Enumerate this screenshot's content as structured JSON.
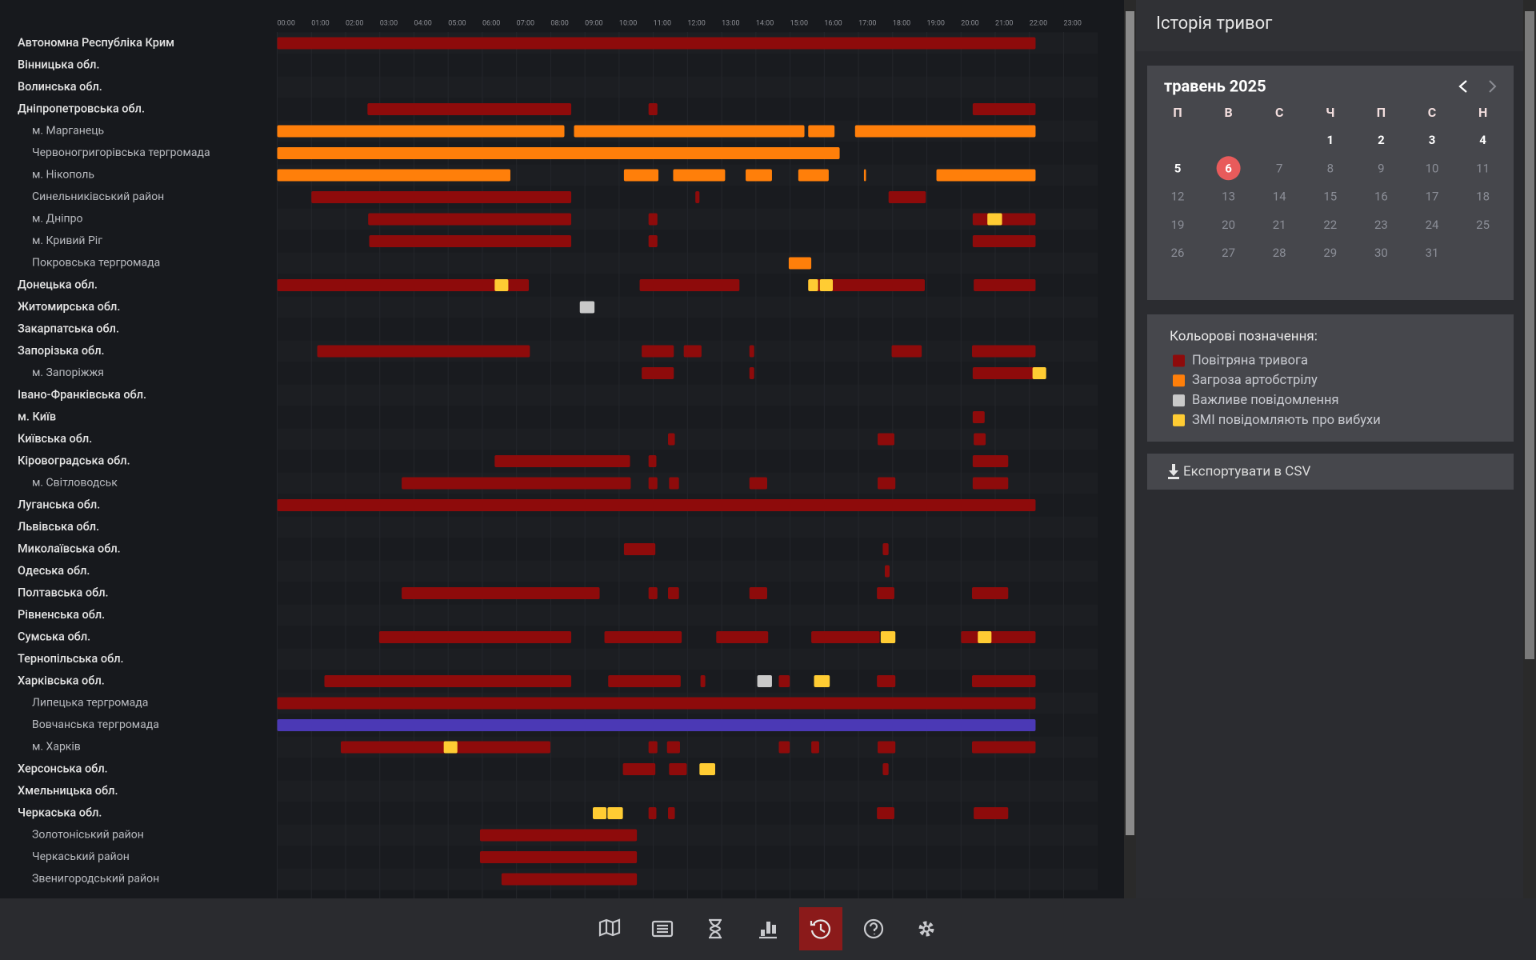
{
  "timeline": {
    "xlim": [
      0,
      24
    ],
    "hours": [
      "00:00",
      "01:00",
      "02:00",
      "03:00",
      "04:00",
      "05:00",
      "06:00",
      "07:00",
      "08:00",
      "09:00",
      "10:00",
      "11:00",
      "12:00",
      "13:00",
      "14:00",
      "15:00",
      "16:00",
      "17:00",
      "18:00",
      "19:00",
      "20:00",
      "21:00",
      "22:00",
      "23:00"
    ],
    "palette": [
      "#8e0b0b",
      "#ff7f0a",
      "#c9c9c9",
      "#ffcc33",
      "#4b39b5"
    ],
    "rows": [
      {
        "name": "Автономна Республіка Крим",
        "level": 0,
        "events": [
          [
            0,
            22.18,
            0
          ]
        ]
      },
      {
        "name": "Вінницька обл.",
        "level": 0,
        "events": []
      },
      {
        "name": "Волинська обл.",
        "level": 0,
        "events": []
      },
      {
        "name": "Дніпропетровська обл.",
        "level": 0,
        "events": [
          [
            2.64,
            8.6,
            0
          ],
          [
            10.86,
            11.12,
            0
          ],
          [
            20.34,
            22.18,
            0
          ]
        ]
      },
      {
        "name": "м. Марганець",
        "level": 1,
        "events": [
          [
            0,
            8.4,
            1
          ],
          [
            8.68,
            15.42,
            1
          ],
          [
            15.53,
            16.3,
            1
          ],
          [
            16.9,
            22.18,
            1
          ]
        ]
      },
      {
        "name": "Червоногригорівська тергромада",
        "level": 1,
        "events": [
          [
            0,
            16.45,
            1
          ]
        ]
      },
      {
        "name": "м. Нікополь",
        "level": 1,
        "events": [
          [
            0,
            6.82,
            1
          ],
          [
            10.14,
            11.15,
            1
          ],
          [
            11.58,
            13.1,
            1
          ],
          [
            13.7,
            14.47,
            1
          ],
          [
            15.24,
            16.13,
            1
          ],
          [
            17.16,
            17.22,
            1
          ],
          [
            19.28,
            22.18,
            1
          ]
        ]
      },
      {
        "name": "Синельниківський район",
        "level": 1,
        "events": [
          [
            1.0,
            8.6,
            0
          ],
          [
            12.23,
            12.35,
            0
          ],
          [
            17.88,
            18.97,
            0
          ]
        ]
      },
      {
        "name": "м. Дніпро",
        "level": 1,
        "events": [
          [
            2.66,
            8.6,
            0
          ],
          [
            10.86,
            11.12,
            0
          ],
          [
            20.34,
            22.18,
            0
          ],
          [
            20.77,
            21.2,
            3
          ]
        ]
      },
      {
        "name": "м. Кривий Ріг",
        "level": 1,
        "events": [
          [
            2.69,
            8.6,
            0
          ],
          [
            10.86,
            11.12,
            0
          ],
          [
            20.34,
            22.18,
            0
          ]
        ]
      },
      {
        "name": "Покровська тергромада",
        "level": 1,
        "events": [
          [
            14.96,
            15.62,
            1
          ]
        ]
      },
      {
        "name": "Донецька обл.",
        "level": 0,
        "events": [
          [
            0,
            7.36,
            0
          ],
          [
            6.36,
            6.76,
            3
          ],
          [
            10.6,
            13.52,
            0
          ],
          [
            15.53,
            18.94,
            0
          ],
          [
            15.53,
            15.82,
            3
          ],
          [
            15.87,
            16.25,
            3
          ],
          [
            20.37,
            22.18,
            0
          ]
        ]
      },
      {
        "name": "Житомирська обл.",
        "level": 0,
        "events": [
          [
            8.85,
            9.28,
            2
          ]
        ]
      },
      {
        "name": "Закарпатська обл.",
        "level": 0,
        "events": []
      },
      {
        "name": "Запорізька обл.",
        "level": 0,
        "events": [
          [
            1.17,
            7.39,
            0
          ],
          [
            10.66,
            11.6,
            0
          ],
          [
            11.89,
            12.41,
            0
          ],
          [
            13.81,
            13.95,
            0
          ],
          [
            17.97,
            18.85,
            0
          ],
          [
            20.32,
            22.18,
            0
          ]
        ]
      },
      {
        "name": "м. Запоріжжя",
        "level": 1,
        "events": [
          [
            10.66,
            11.6,
            0
          ],
          [
            13.81,
            13.95,
            0
          ],
          [
            20.34,
            22.18,
            0
          ],
          [
            22.09,
            22.49,
            3
          ]
        ]
      },
      {
        "name": "Івано-Франківська обл.",
        "level": 0,
        "events": []
      },
      {
        "name": "м. Київ",
        "level": 0,
        "events": [
          [
            20.34,
            20.69,
            0
          ]
        ]
      },
      {
        "name": "Київська обл.",
        "level": 0,
        "events": [
          [
            11.43,
            11.63,
            0
          ],
          [
            17.56,
            18.05,
            0
          ],
          [
            20.37,
            20.72,
            0
          ]
        ]
      },
      {
        "name": "Кіровоградська обл.",
        "level": 0,
        "events": [
          [
            6.36,
            10.32,
            0
          ],
          [
            10.86,
            11.09,
            0
          ],
          [
            20.34,
            21.38,
            0
          ]
        ]
      },
      {
        "name": "м. Світловодськ",
        "level": 1,
        "events": [
          [
            3.64,
            10.34,
            0
          ],
          [
            10.86,
            11.12,
            0
          ],
          [
            11.46,
            11.75,
            0
          ],
          [
            13.81,
            14.33,
            0
          ],
          [
            17.56,
            18.08,
            0
          ],
          [
            20.34,
            21.38,
            0
          ]
        ]
      },
      {
        "name": "Луганська обл.",
        "level": 0,
        "events": [
          [
            0,
            22.18,
            0
          ]
        ]
      },
      {
        "name": "Львівська обл.",
        "level": 0,
        "events": []
      },
      {
        "name": "Миколаївська обл.",
        "level": 0,
        "events": [
          [
            10.14,
            11.06,
            0
          ],
          [
            17.71,
            17.88,
            0
          ]
        ]
      },
      {
        "name": "Одеська обл.",
        "level": 0,
        "events": [
          [
            17.77,
            17.91,
            0
          ]
        ]
      },
      {
        "name": "Полтавська обл.",
        "level": 0,
        "events": [
          [
            3.64,
            9.43,
            0
          ],
          [
            10.86,
            11.12,
            0
          ],
          [
            11.43,
            11.75,
            0
          ],
          [
            13.81,
            14.33,
            0
          ],
          [
            17.54,
            18.05,
            0
          ],
          [
            20.32,
            21.38,
            0
          ]
        ]
      },
      {
        "name": "Рівненська обл.",
        "level": 0,
        "events": []
      },
      {
        "name": "Сумська обл.",
        "level": 0,
        "events": [
          [
            2.98,
            8.6,
            0
          ],
          [
            9.57,
            11.83,
            0
          ],
          [
            12.84,
            14.36,
            0
          ],
          [
            15.62,
            17.62,
            0
          ],
          [
            17.65,
            18.08,
            3
          ],
          [
            20.0,
            22.18,
            0
          ],
          [
            20.49,
            20.89,
            3
          ]
        ]
      },
      {
        "name": "Тернопільська обл.",
        "level": 0,
        "events": []
      },
      {
        "name": "Харківська обл.",
        "level": 0,
        "events": [
          [
            1.38,
            8.6,
            0
          ],
          [
            9.68,
            11.8,
            0
          ],
          [
            12.38,
            12.52,
            0
          ],
          [
            14.04,
            14.47,
            2
          ],
          [
            14.67,
            14.99,
            0
          ],
          [
            15.7,
            16.16,
            3
          ],
          [
            17.54,
            18.08,
            0
          ],
          [
            20.32,
            22.18,
            0
          ]
        ]
      },
      {
        "name": "Липецька тергромада",
        "level": 1,
        "events": [
          [
            0,
            22.18,
            0
          ]
        ]
      },
      {
        "name": "Вовчанська тергромада",
        "level": 1,
        "events": [
          [
            0,
            22.18,
            4
          ]
        ]
      },
      {
        "name": "м. Харків",
        "level": 1,
        "events": [
          [
            1.86,
            7.99,
            0
          ],
          [
            4.87,
            5.27,
            3
          ],
          [
            10.86,
            11.12,
            0
          ],
          [
            11.4,
            11.78,
            0
          ],
          [
            14.67,
            14.99,
            0
          ],
          [
            15.62,
            15.85,
            0
          ],
          [
            17.56,
            18.08,
            0
          ],
          [
            20.32,
            22.18,
            0
          ]
        ]
      },
      {
        "name": "Херсонська обл.",
        "level": 0,
        "events": [
          [
            10.11,
            11.06,
            0
          ],
          [
            11.46,
            11.98,
            0
          ],
          [
            12.35,
            12.81,
            3
          ],
          [
            17.71,
            17.88,
            0
          ]
        ]
      },
      {
        "name": "Хмельницька обл.",
        "level": 0,
        "events": []
      },
      {
        "name": "Черкаська обл.",
        "level": 0,
        "events": [
          [
            9.23,
            9.63,
            3
          ],
          [
            9.66,
            10.11,
            3
          ],
          [
            10.86,
            11.09,
            0
          ],
          [
            11.43,
            11.63,
            0
          ],
          [
            17.54,
            18.05,
            0
          ],
          [
            20.37,
            21.38,
            0
          ]
        ]
      },
      {
        "name": "Золотоніський район",
        "level": 1,
        "events": [
          [
            5.93,
            10.52,
            0
          ]
        ]
      },
      {
        "name": "Черкаський район",
        "level": 1,
        "events": [
          [
            5.93,
            10.52,
            0
          ]
        ]
      },
      {
        "name": "Звенигородський район",
        "level": 1,
        "events": [
          [
            6.56,
            10.52,
            0
          ]
        ]
      }
    ]
  },
  "sidebar": {
    "title": "Історія тривог",
    "calendar": {
      "title": "травень 2025",
      "weekdays": [
        "П",
        "В",
        "С",
        "Ч",
        "П",
        "С",
        "Н"
      ],
      "selected": 6,
      "weeks": [
        [
          null,
          null,
          null,
          1,
          2,
          3,
          4
        ],
        [
          5,
          6,
          7,
          8,
          9,
          10,
          11
        ],
        [
          12,
          13,
          14,
          15,
          16,
          17,
          18
        ],
        [
          19,
          20,
          21,
          22,
          23,
          24,
          25
        ],
        [
          26,
          27,
          28,
          29,
          30,
          31,
          null
        ]
      ]
    },
    "legend": {
      "title": "Кольорові позначення:",
      "items": [
        {
          "label": "Повітряна тривога",
          "kind": 0
        },
        {
          "label": "Загроза артобстрілу",
          "kind": 1
        },
        {
          "label": "Важливе повідомлення",
          "kind": 2
        },
        {
          "label": "ЗМІ повідомляють про вибухи",
          "kind": 3
        }
      ]
    },
    "export": "Експортувати в CSV"
  },
  "nav": {
    "active": 4
  }
}
